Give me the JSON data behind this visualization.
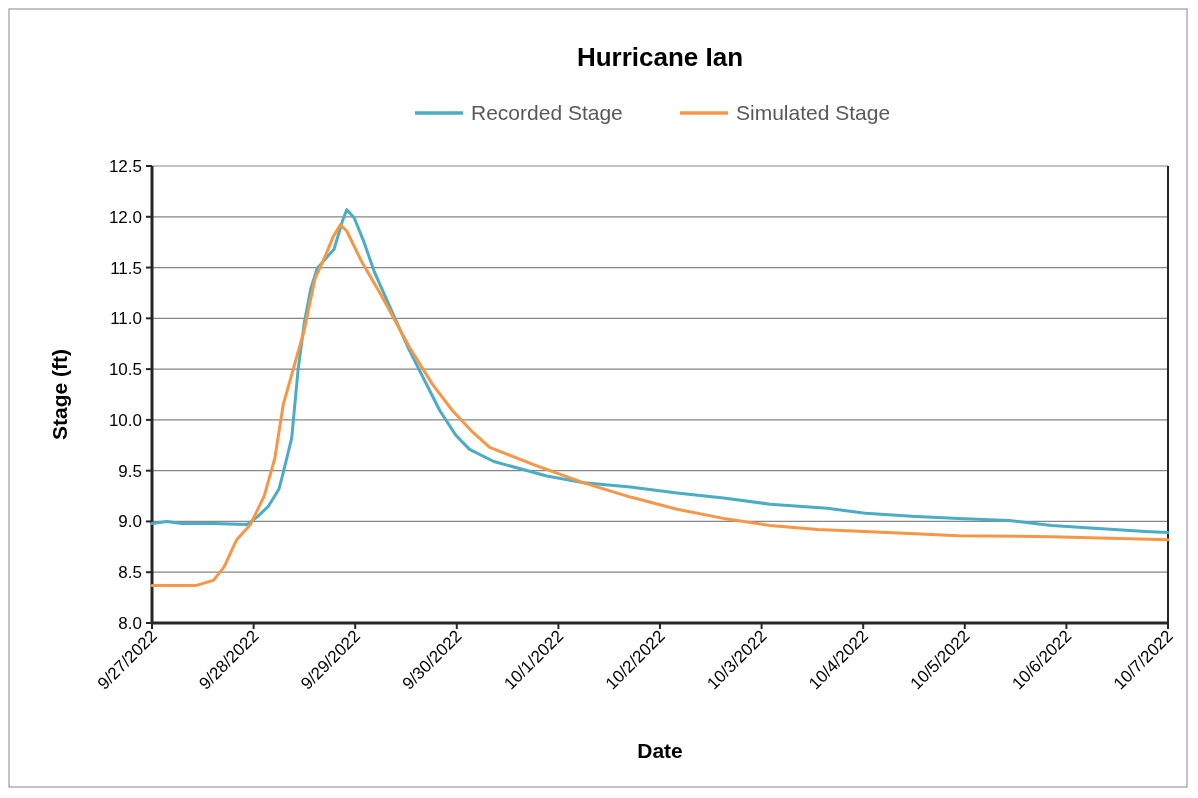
{
  "chart_data": {
    "type": "line",
    "title": "Hurricane Ian",
    "xlabel": "Date",
    "ylabel": "Stage (ft)",
    "xlim": [
      "2022-09-27",
      "2022-10-07"
    ],
    "xticks": [
      {
        "value": "2022-09-27",
        "label": "9/27/2022"
      },
      {
        "value": "2022-09-28",
        "label": "9/28/2022"
      },
      {
        "value": "2022-09-29",
        "label": "9/29/2022"
      },
      {
        "value": "2022-09-30",
        "label": "9/30/2022"
      },
      {
        "value": "2022-10-01",
        "label": "10/1/2022"
      },
      {
        "value": "2022-10-02",
        "label": "10/2/2022"
      },
      {
        "value": "2022-10-03",
        "label": "10/3/2022"
      },
      {
        "value": "2022-10-04",
        "label": "10/4/2022"
      },
      {
        "value": "2022-10-05",
        "label": "10/5/2022"
      },
      {
        "value": "2022-10-06",
        "label": "10/6/2022"
      },
      {
        "value": "2022-10-07",
        "label": "10/7/2022"
      }
    ],
    "ylim": [
      8.0,
      12.5
    ],
    "yticks": [
      {
        "value": 8.0,
        "label": "8.0"
      },
      {
        "value": 8.5,
        "label": "8.5"
      },
      {
        "value": 9.0,
        "label": "9.0"
      },
      {
        "value": 9.5,
        "label": "9.5"
      },
      {
        "value": 10.0,
        "label": "10.0"
      },
      {
        "value": 10.5,
        "label": "10.5"
      },
      {
        "value": 11.0,
        "label": "11.0"
      },
      {
        "value": 11.5,
        "label": "11.5"
      },
      {
        "value": 12.0,
        "label": "12.0"
      },
      {
        "value": 12.5,
        "label": "12.5"
      }
    ],
    "grid": "y",
    "legend": "top",
    "marker": "none",
    "line_style": "solid",
    "series": [
      {
        "name": "Recorded Stage",
        "color": "#4bacc6",
        "x": [
          "2022-09-27T00:00",
          "2022-09-27T03:30",
          "2022-09-27T07:00",
          "2022-09-27T14:30",
          "2022-09-27T22:30",
          "2022-09-28T01:00",
          "2022-09-28T03:30",
          "2022-09-28T06:00",
          "2022-09-28T07:00",
          "2022-09-28T09:00",
          "2022-09-28T10:30",
          "2022-09-28T12:00",
          "2022-09-28T13:30",
          "2022-09-28T15:00",
          "2022-09-28T17:30",
          "2022-09-28T19:00",
          "2022-09-28T21:00",
          "2022-09-28T22:00",
          "2022-09-28T23:45",
          "2022-09-29T02:00",
          "2022-09-29T04:30",
          "2022-09-29T09:30",
          "2022-09-29T12:45",
          "2022-09-29T16:00",
          "2022-09-29T20:00",
          "2022-09-29T23:45",
          "2022-09-30T03:00",
          "2022-09-30T08:45",
          "2022-09-30T21:00",
          "2022-10-01T06:00",
          "2022-10-01T17:00",
          "2022-10-02T04:00",
          "2022-10-02T15:00",
          "2022-10-03T02:00",
          "2022-10-03T15:30",
          "2022-10-04T00:30",
          "2022-10-04T11:30",
          "2022-10-04T22:30",
          "2022-10-05T10:30",
          "2022-10-05T20:30",
          "2022-10-06T07:30",
          "2022-10-06T18:45",
          "2022-10-07T00:00"
        ],
        "values": [
          8.98,
          9.0,
          8.98,
          8.98,
          8.97,
          9.05,
          9.15,
          9.32,
          9.48,
          9.82,
          10.49,
          10.96,
          11.29,
          11.49,
          11.61,
          11.68,
          11.96,
          12.07,
          11.99,
          11.76,
          11.46,
          10.99,
          10.69,
          10.42,
          10.09,
          9.85,
          9.71,
          9.59,
          9.45,
          9.38,
          9.34,
          9.28,
          9.23,
          9.17,
          9.13,
          9.08,
          9.05,
          9.03,
          9.01,
          8.96,
          8.93,
          8.9,
          8.89
        ]
      },
      {
        "name": "Simulated Stage",
        "color": "#f79646",
        "x": [
          "2022-09-27T00:00",
          "2022-09-27T10:30",
          "2022-09-27T14:30",
          "2022-09-27T17:00",
          "2022-09-27T20:00",
          "2022-09-27T23:15",
          "2022-09-28T02:30",
          "2022-09-28T05:00",
          "2022-09-28T07:00",
          "2022-09-28T09:30",
          "2022-09-28T12:00",
          "2022-09-28T14:30",
          "2022-09-28T17:00",
          "2022-09-28T18:45",
          "2022-09-28T20:30",
          "2022-09-28T22:00",
          "2022-09-29T01:30",
          "2022-09-29T06:15",
          "2022-09-29T12:45",
          "2022-09-29T18:15",
          "2022-09-29T23:00",
          "2022-09-30T03:30",
          "2022-09-30T07:45",
          "2022-09-30T18:45",
          "2022-10-01T06:00",
          "2022-10-01T17:00",
          "2022-10-02T04:00",
          "2022-10-02T15:00",
          "2022-10-03T02:00",
          "2022-10-03T13:15",
          "2022-10-04T05:45",
          "2022-10-04T22:30",
          "2022-10-05T20:30",
          "2022-10-07T00:00"
        ],
        "values": [
          8.37,
          8.37,
          8.42,
          8.55,
          8.82,
          8.97,
          9.25,
          9.62,
          10.15,
          10.52,
          10.89,
          11.39,
          11.62,
          11.8,
          11.92,
          11.86,
          11.56,
          11.22,
          10.72,
          10.35,
          10.09,
          9.89,
          9.73,
          9.55,
          9.38,
          9.24,
          9.12,
          9.03,
          8.96,
          8.92,
          8.89,
          8.86,
          8.85,
          8.82
        ]
      }
    ]
  }
}
